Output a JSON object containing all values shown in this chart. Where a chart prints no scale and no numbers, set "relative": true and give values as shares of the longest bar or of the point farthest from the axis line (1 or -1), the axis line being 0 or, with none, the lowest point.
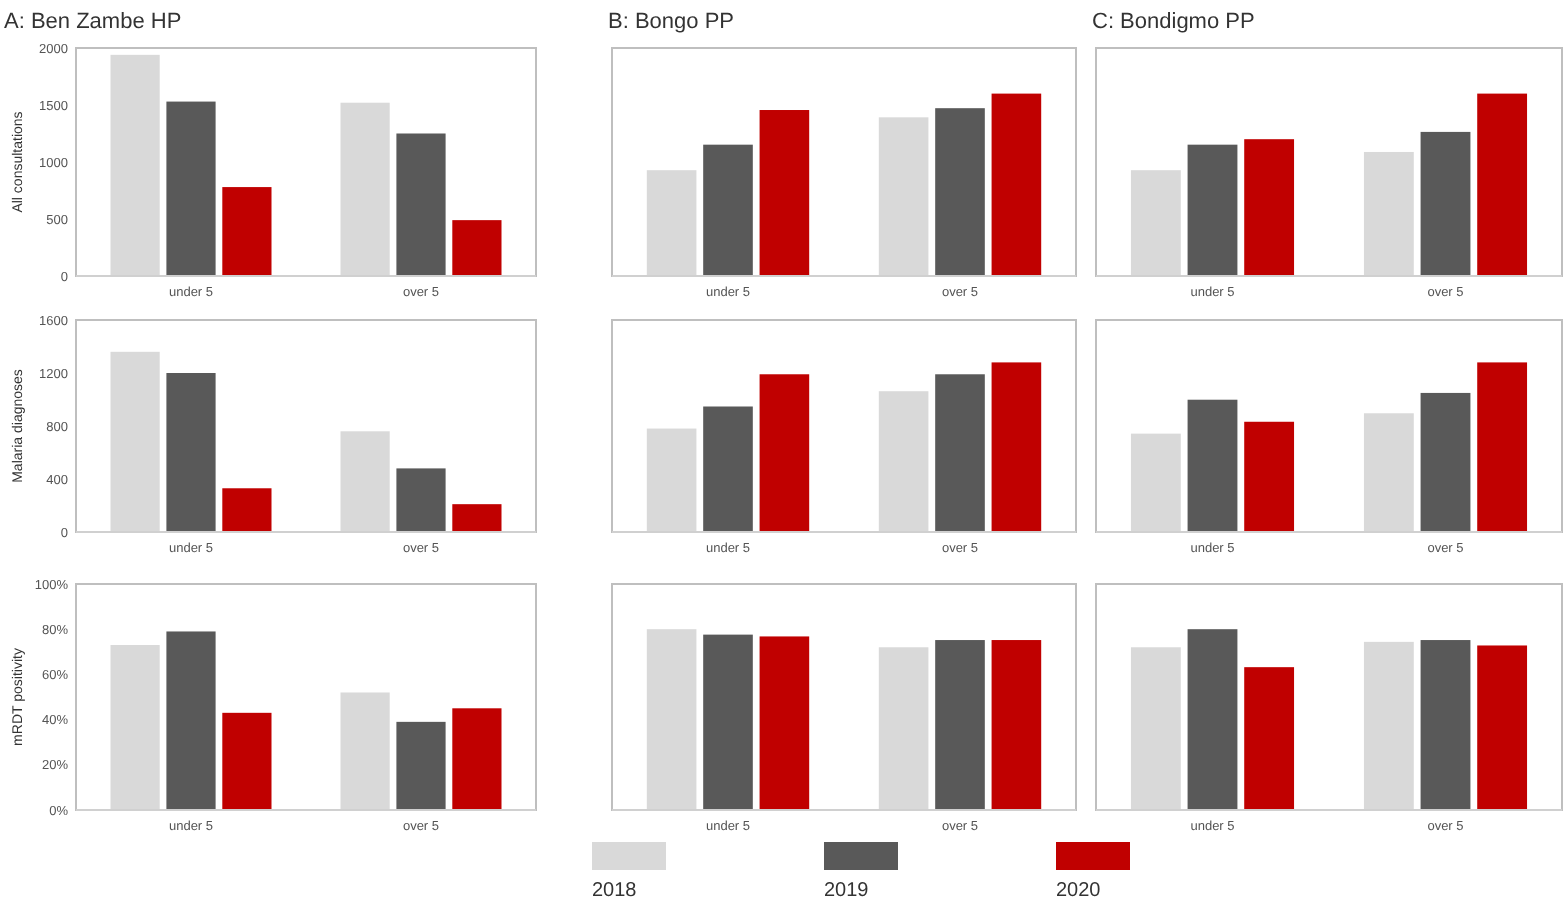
{
  "chart_data": [
    {
      "type": "bar",
      "title": "A: Ben Zambe HP",
      "ylabel": "All consultations",
      "categories": [
        "under 5",
        "over 5"
      ],
      "ylim": [
        0,
        2000
      ],
      "yticks": [
        0,
        500,
        1000,
        1500,
        2000
      ],
      "grid": false,
      "series": [
        {
          "color": "#d9d9d9",
          "values": [
            1940,
            1520
          ]
        },
        {
          "color": "#595959",
          "values": [
            1530,
            1250
          ]
        },
        {
          "color": "#c00000",
          "values": [
            780,
            490
          ]
        }
      ]
    },
    {
      "type": "bar",
      "title": "B: Bongo PP",
      "relative": true,
      "categories": [
        "under 5",
        "over 5"
      ],
      "grid": false,
      "series": [
        {
          "color": "#d9d9d9",
          "values": [
            0.58,
            0.87
          ]
        },
        {
          "color": "#595959",
          "values": [
            0.72,
            0.92
          ]
        },
        {
          "color": "#c00000",
          "values": [
            0.91,
            1
          ]
        }
      ]
    },
    {
      "type": "bar",
      "title": "C: Bondigmo PP",
      "relative": true,
      "categories": [
        "under 5",
        "over 5"
      ],
      "grid": false,
      "series": [
        {
          "color": "#d9d9d9",
          "values": [
            0.58,
            0.68
          ]
        },
        {
          "color": "#595959",
          "values": [
            0.72,
            0.79
          ]
        },
        {
          "color": "#c00000",
          "values": [
            0.75,
            1
          ]
        }
      ]
    },
    {
      "type": "bar",
      "ylabel": "Malaria diagnoses",
      "categories": [
        "under 5",
        "over 5"
      ],
      "ylim": [
        0,
        1600
      ],
      "yticks": [
        0,
        400,
        800,
        1200,
        1600
      ],
      "grid": false,
      "series": [
        {
          "color": "#d9d9d9",
          "values": [
            1360,
            760
          ]
        },
        {
          "color": "#595959",
          "values": [
            1200,
            480
          ]
        },
        {
          "color": "#c00000",
          "values": [
            330,
            210
          ]
        }
      ]
    },
    {
      "type": "bar",
      "relative": true,
      "categories": [
        "under 5",
        "over 5"
      ],
      "grid": false,
      "series": [
        {
          "color": "#d9d9d9",
          "values": [
            0.61,
            0.83
          ]
        },
        {
          "color": "#595959",
          "values": [
            0.74,
            0.93
          ]
        },
        {
          "color": "#c00000",
          "values": [
            0.93,
            1
          ]
        }
      ]
    },
    {
      "type": "bar",
      "relative": true,
      "categories": [
        "under 5",
        "over 5"
      ],
      "grid": false,
      "series": [
        {
          "color": "#d9d9d9",
          "values": [
            0.58,
            0.7
          ]
        },
        {
          "color": "#595959",
          "values": [
            0.78,
            0.82
          ]
        },
        {
          "color": "#c00000",
          "values": [
            0.65,
            1
          ]
        }
      ]
    },
    {
      "type": "bar",
      "ylabel": "mRDT positivity",
      "categories": [
        "under 5",
        "over 5"
      ],
      "ylim": [
        0,
        100
      ],
      "yticks": [
        {
          "value": 0,
          "label": "0%"
        },
        {
          "value": 20,
          "label": "20%"
        },
        {
          "value": 40,
          "label": "40%"
        },
        {
          "value": 60,
          "label": "60%"
        },
        {
          "value": 80,
          "label": "80%"
        },
        {
          "value": 100,
          "label": "100%"
        }
      ],
      "grid": false,
      "series": [
        {
          "color": "#d9d9d9",
          "values": [
            73,
            52
          ]
        },
        {
          "color": "#595959",
          "values": [
            79,
            39
          ]
        },
        {
          "color": "#c00000",
          "values": [
            43,
            45
          ]
        }
      ]
    },
    {
      "type": "bar",
      "relative": true,
      "categories": [
        "under 5",
        "over 5"
      ],
      "grid": false,
      "legend": "bottom",
      "series": [
        {
          "name": "2018",
          "color": "#d9d9d9",
          "values": [
            1,
            0.9
          ]
        },
        {
          "name": "2019",
          "color": "#595959",
          "values": [
            0.97,
            0.94
          ]
        },
        {
          "name": "2020",
          "color": "#c00000",
          "values": [
            0.96,
            0.94
          ]
        }
      ]
    },
    {
      "type": "bar",
      "relative": true,
      "categories": [
        "under 5",
        "over 5"
      ],
      "grid": false,
      "series": [
        {
          "color": "#d9d9d9",
          "values": [
            0.9,
            0.93
          ]
        },
        {
          "color": "#595959",
          "values": [
            1,
            0.94
          ]
        },
        {
          "color": "#c00000",
          "values": [
            0.79,
            0.91
          ]
        }
      ]
    }
  ]
}
